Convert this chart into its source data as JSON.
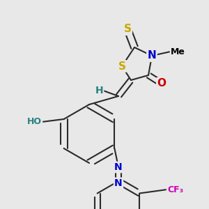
{
  "background_color": "#e8e8e8",
  "bond_color": "#2a2a2a",
  "bond_width": 1.5,
  "figsize": [
    3.0,
    3.0
  ],
  "dpi": 100,
  "colors": {
    "S": "#c8a800",
    "N": "#0000cc",
    "O": "#cc0000",
    "OH": "#2a8080",
    "H": "#2a8080",
    "CF3": "#cc00bb",
    "Me": "#000000",
    "bond": "#2a2a2a"
  }
}
